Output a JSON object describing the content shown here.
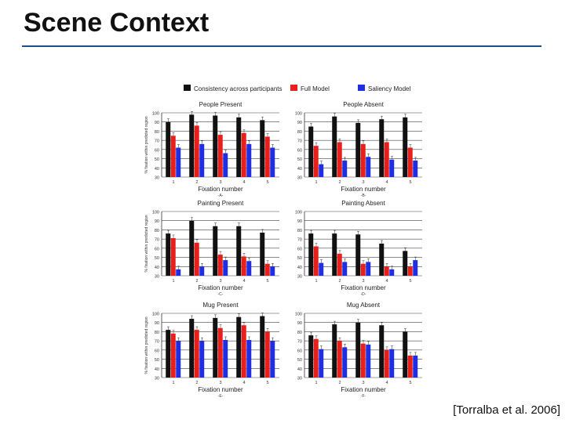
{
  "slide": {
    "title": "Scene Context",
    "citation": "[Torralba et al. 2006]"
  },
  "legend": [
    {
      "label": "Consistency across participants",
      "color": "#111111"
    },
    {
      "label": "Full Model",
      "color": "#e8201c"
    },
    {
      "label": "Saliency Model",
      "color": "#1f2ee0"
    }
  ],
  "chart_data": [
    {
      "type": "bar",
      "title": "People Present",
      "panel_label": "-A-",
      "xlabel": "Fixation number",
      "ylabel": "% fixation within predicted region",
      "categories": [
        "1",
        "2",
        "3",
        "4",
        "5"
      ],
      "ylim": [
        30,
        100
      ],
      "yticks": [
        30,
        40,
        50,
        60,
        70,
        80,
        90,
        100
      ],
      "series": [
        {
          "name": "Consistency across participants",
          "values": [
            90,
            98,
            97,
            95,
            92
          ]
        },
        {
          "name": "Full Model",
          "values": [
            75,
            86,
            76,
            78,
            74
          ]
        },
        {
          "name": "Saliency Model",
          "values": [
            62,
            66,
            56,
            66,
            62
          ]
        }
      ]
    },
    {
      "type": "bar",
      "title": "People Absent",
      "panel_label": "-B-",
      "xlabel": "Fixation number",
      "ylabel": "",
      "categories": [
        "1",
        "2",
        "3",
        "4",
        "5"
      ],
      "ylim": [
        30,
        100
      ],
      "yticks": [
        30,
        40,
        50,
        60,
        70,
        80,
        90,
        100
      ],
      "series": [
        {
          "name": "Consistency across participants",
          "values": [
            85,
            96,
            89,
            93,
            95
          ]
        },
        {
          "name": "Full Model",
          "values": [
            64,
            68,
            66,
            68,
            62
          ]
        },
        {
          "name": "Saliency Model",
          "values": [
            44,
            48,
            52,
            49,
            48
          ]
        }
      ]
    },
    {
      "type": "bar",
      "title": "Painting Present",
      "panel_label": "-C-",
      "xlabel": "Fixation number",
      "ylabel": "% fixation within predicted region",
      "categories": [
        "1",
        "2",
        "3",
        "4",
        "5"
      ],
      "ylim": [
        30,
        100
      ],
      "yticks": [
        30,
        40,
        50,
        60,
        70,
        80,
        90,
        100
      ],
      "series": [
        {
          "name": "Consistency across participants",
          "values": [
            76,
            90,
            84,
            84,
            77
          ]
        },
        {
          "name": "Full Model",
          "values": [
            71,
            66,
            53,
            51,
            43
          ]
        },
        {
          "name": "Saliency Model",
          "values": [
            37,
            40,
            47,
            46,
            40
          ]
        }
      ]
    },
    {
      "type": "bar",
      "title": "Painting Absent",
      "panel_label": "-D-",
      "xlabel": "Fixation number",
      "ylabel": "",
      "categories": [
        "1",
        "2",
        "3",
        "4",
        "5"
      ],
      "ylim": [
        30,
        100
      ],
      "yticks": [
        30,
        40,
        50,
        60,
        70,
        80,
        90,
        100
      ],
      "series": [
        {
          "name": "Consistency across participants",
          "values": [
            76,
            76,
            75,
            65,
            57
          ]
        },
        {
          "name": "Full Model",
          "values": [
            62,
            54,
            43,
            40,
            40
          ]
        },
        {
          "name": "Saliency Model",
          "values": [
            44,
            45,
            45,
            37,
            47
          ]
        }
      ]
    },
    {
      "type": "bar",
      "title": "Mug Present",
      "panel_label": "-E-",
      "xlabel": "Fixation number",
      "ylabel": "% fixation within predicted region",
      "categories": [
        "1",
        "2",
        "3",
        "4",
        "5"
      ],
      "ylim": [
        30,
        100
      ],
      "yticks": [
        30,
        40,
        50,
        60,
        70,
        80,
        90,
        100
      ],
      "series": [
        {
          "name": "Consistency across participants",
          "values": [
            82,
            94,
            95,
            96,
            97
          ]
        },
        {
          "name": "Full Model",
          "values": [
            78,
            82,
            84,
            87,
            80
          ]
        },
        {
          "name": "Saliency Model",
          "values": [
            70,
            70,
            71,
            71,
            70
          ]
        }
      ]
    },
    {
      "type": "bar",
      "title": "Mug Absent",
      "panel_label": "-F-",
      "xlabel": "Fixation number",
      "ylabel": "",
      "categories": [
        "1",
        "2",
        "3",
        "4",
        "5"
      ],
      "ylim": [
        30,
        100
      ],
      "yticks": [
        30,
        40,
        50,
        60,
        70,
        80,
        90,
        100
      ],
      "series": [
        {
          "name": "Consistency across participants",
          "values": [
            76,
            88,
            90,
            87,
            80
          ]
        },
        {
          "name": "Full Model",
          "values": [
            72,
            70,
            67,
            60,
            54
          ]
        },
        {
          "name": "Saliency Model",
          "values": [
            61,
            63,
            66,
            61,
            54
          ]
        }
      ]
    }
  ]
}
